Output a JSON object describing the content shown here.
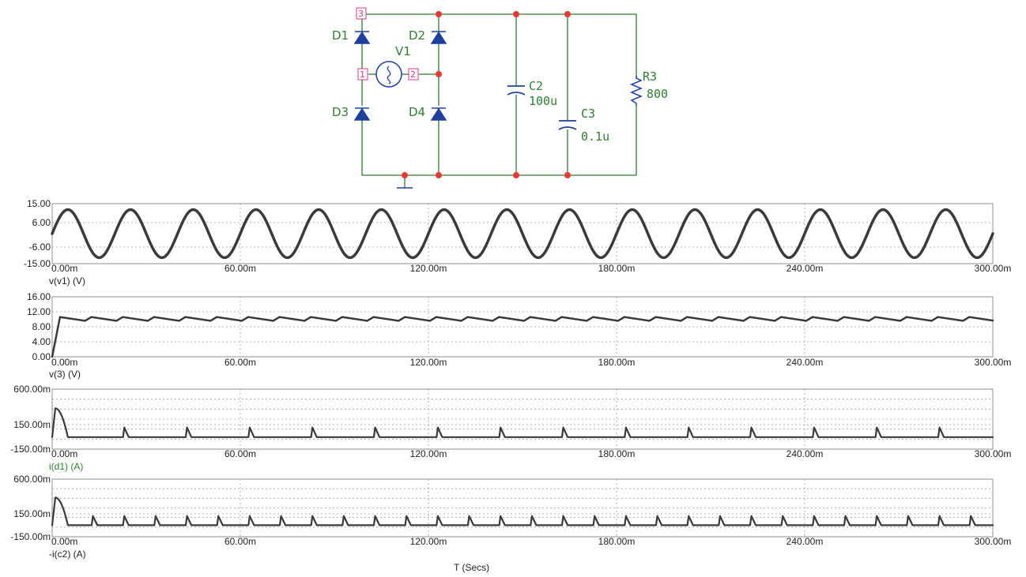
{
  "schematic": {
    "components": {
      "d1": "D1",
      "d2": "D2",
      "d3": "D3",
      "d4": "D4",
      "v1": "V1",
      "c2": "C2",
      "c2_value": "100u",
      "c3": "C3",
      "c3_value": "0.1u",
      "r3": "R3",
      "r3_value": "800"
    },
    "pins": {
      "p1": "1",
      "p2": "2",
      "p3": "3"
    },
    "colors": {
      "wire": "#2e7d32",
      "diode": "#1f3f9e",
      "node": "#e53935",
      "pin": "#d0388e"
    }
  },
  "x_axis_label": "T (Secs)",
  "chart_data": [
    {
      "type": "line",
      "ylabel": "v(v1) (V)",
      "yticks": [
        "15.00",
        "6.00",
        "-6.00",
        "-15.00"
      ],
      "ylim": [
        -15,
        15
      ],
      "xticks": [
        "0.00m",
        "60.00m",
        "120.00m",
        "180.00m",
        "240.00m",
        "300.00m"
      ],
      "xlim_ms": [
        0,
        300
      ],
      "grid": true,
      "series": [
        {
          "shape": "sine",
          "amplitude": 12,
          "frequency_hz": 50,
          "phase_deg": 0
        }
      ]
    },
    {
      "type": "line",
      "ylabel": "v(3) (V)",
      "yticks": [
        "16.00",
        "12.00",
        "8.00",
        "4.00",
        "0.00"
      ],
      "ylim": [
        0,
        16
      ],
      "xticks": [
        "0.00m",
        "60.00m",
        "120.00m",
        "180.00m",
        "240.00m",
        "300.00m"
      ],
      "xlim_ms": [
        0,
        300
      ],
      "grid": true,
      "series": [
        {
          "shape": "rectified-ripple",
          "peak": 10.6,
          "trough": 9.6,
          "rise_ms": 2.5,
          "period_ms": 10
        }
      ]
    },
    {
      "type": "line",
      "ylabel": "i(d1) (A)",
      "yticks": [
        "600.00m",
        "150.00m",
        "-150.00m"
      ],
      "ylim": [
        -0.15,
        0.6
      ],
      "xticks": [
        "0.00m",
        "60.00m",
        "120.00m",
        "180.00m",
        "240.00m",
        "300.00m"
      ],
      "xlim_ms": [
        0,
        300
      ],
      "grid": true,
      "series": [
        {
          "shape": "pulse-train",
          "baseline": 0,
          "initial_peak": 0.36,
          "pulse_peak": 0.12,
          "first_pulse_ms": 23,
          "period_ms": 20
        }
      ]
    },
    {
      "type": "line",
      "ylabel": "-i(c2) (A)",
      "yticks": [
        "600.00m",
        "150.00m",
        "-150.00m"
      ],
      "ylim": [
        -0.15,
        0.6
      ],
      "xticks": [
        "0.00m",
        "60.00m",
        "120.00m",
        "180.00m",
        "240.00m",
        "300.00m"
      ],
      "xlim_ms": [
        0,
        300
      ],
      "grid": true,
      "series": [
        {
          "shape": "pulse-train",
          "baseline": 0,
          "initial_peak": 0.36,
          "pulse_peak": 0.12,
          "first_pulse_ms": 13,
          "period_ms": 10
        }
      ]
    }
  ]
}
